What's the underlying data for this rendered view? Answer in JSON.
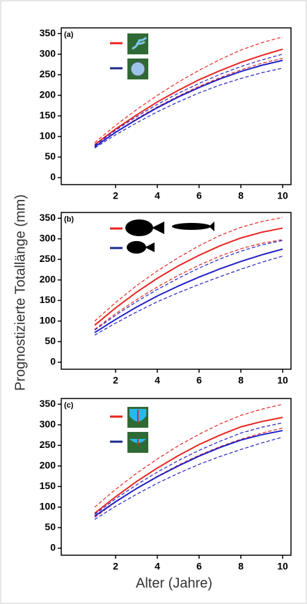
{
  "y_label": "Prognostizierte Totallänge (mm)",
  "x_label": "Alter (Jahre)",
  "chart_data": [
    {
      "type": "line",
      "panel_label": "(a)",
      "x": [
        1,
        2,
        3,
        4,
        5,
        6,
        7,
        8,
        9,
        10
      ],
      "xlim": [
        -0.6,
        10.4
      ],
      "ylim": [
        -17,
        364
      ],
      "xticks": [
        2,
        4,
        6,
        8,
        10
      ],
      "yticks": [
        0,
        50,
        100,
        150,
        200,
        250,
        300,
        350
      ],
      "series": [
        {
          "color": "#e8231f",
          "dashed": false,
          "values": [
            80,
            118,
            152,
            184,
            212,
            238,
            260,
            280,
            297,
            312
          ]
        },
        {
          "color": "#e8231f",
          "dashed": true,
          "values": [
            85,
            127,
            165,
            200,
            232,
            261,
            287,
            310,
            328,
            342
          ]
        },
        {
          "color": "#e8231f",
          "dashed": true,
          "values": [
            75,
            110,
            143,
            172,
            198,
            222,
            243,
            262,
            278,
            290
          ]
        },
        {
          "color": "#1f1fc8",
          "dashed": false,
          "values": [
            75,
            110,
            141,
            170,
            196,
            219,
            240,
            258,
            273,
            285
          ]
        },
        {
          "color": "#1f1fc8",
          "dashed": true,
          "values": [
            78,
            115,
            148,
            178,
            205,
            229,
            251,
            270,
            286,
            300
          ]
        },
        {
          "color": "#1f1fc8",
          "dashed": true,
          "values": [
            72,
            104,
            133,
            160,
            184,
            206,
            225,
            241,
            255,
            266
          ]
        }
      ]
    },
    {
      "type": "line",
      "panel_label": "(b)",
      "x": [
        1,
        2,
        3,
        4,
        5,
        6,
        7,
        8,
        9,
        10
      ],
      "xlim": [
        -0.6,
        10.4
      ],
      "ylim": [
        -17,
        364
      ],
      "xticks": [
        2,
        4,
        6,
        8,
        10
      ],
      "yticks": [
        0,
        50,
        100,
        150,
        200,
        250,
        300,
        350
      ],
      "series": [
        {
          "color": "#e8231f",
          "dashed": false,
          "values": [
            90,
            132,
            170,
            204,
            234,
            260,
            283,
            302,
            316,
            326
          ]
        },
        {
          "color": "#e8231f",
          "dashed": true,
          "values": [
            100,
            145,
            186,
            222,
            254,
            283,
            308,
            328,
            342,
            352
          ]
        },
        {
          "color": "#e8231f",
          "dashed": true,
          "values": [
            80,
            118,
            152,
            183,
            211,
            236,
            258,
            276,
            289,
            298
          ]
        },
        {
          "color": "#1f1fc8",
          "dashed": false,
          "values": [
            72,
            104,
            134,
            161,
            185,
            207,
            227,
            245,
            261,
            275
          ]
        },
        {
          "color": "#1f1fc8",
          "dashed": true,
          "values": [
            78,
            114,
            147,
            177,
            204,
            229,
            251,
            270,
            285,
            296
          ]
        },
        {
          "color": "#1f1fc8",
          "dashed": true,
          "values": [
            66,
            95,
            122,
            147,
            169,
            189,
            208,
            226,
            243,
            258
          ]
        }
      ]
    },
    {
      "type": "line",
      "panel_label": "(c)",
      "x": [
        1,
        2,
        3,
        4,
        5,
        6,
        7,
        8,
        9,
        10
      ],
      "xlim": [
        -0.6,
        10.4
      ],
      "ylim": [
        -17,
        364
      ],
      "xticks": [
        2,
        4,
        6,
        8,
        10
      ],
      "yticks": [
        0,
        50,
        100,
        150,
        200,
        250,
        300,
        350
      ],
      "series": [
        {
          "color": "#e8231f",
          "dashed": false,
          "values": [
            85,
            125,
            162,
            195,
            225,
            252,
            275,
            295,
            308,
            318
          ]
        },
        {
          "color": "#e8231f",
          "dashed": true,
          "values": [
            100,
            143,
            182,
            217,
            249,
            277,
            302,
            323,
            338,
            350
          ]
        },
        {
          "color": "#e8231f",
          "dashed": true,
          "values": [
            75,
            112,
            145,
            175,
            202,
            226,
            247,
            265,
            280,
            292
          ]
        },
        {
          "color": "#1f1fc8",
          "dashed": false,
          "values": [
            78,
            113,
            145,
            174,
            200,
            224,
            245,
            263,
            276,
            286
          ]
        },
        {
          "color": "#1f1fc8",
          "dashed": true,
          "values": [
            82,
            120,
            154,
            185,
            213,
            238,
            260,
            280,
            294,
            305
          ]
        },
        {
          "color": "#1f1fc8",
          "dashed": true,
          "values": [
            70,
            102,
            131,
            158,
            182,
            204,
            223,
            240,
            256,
            270
          ]
        }
      ]
    }
  ]
}
